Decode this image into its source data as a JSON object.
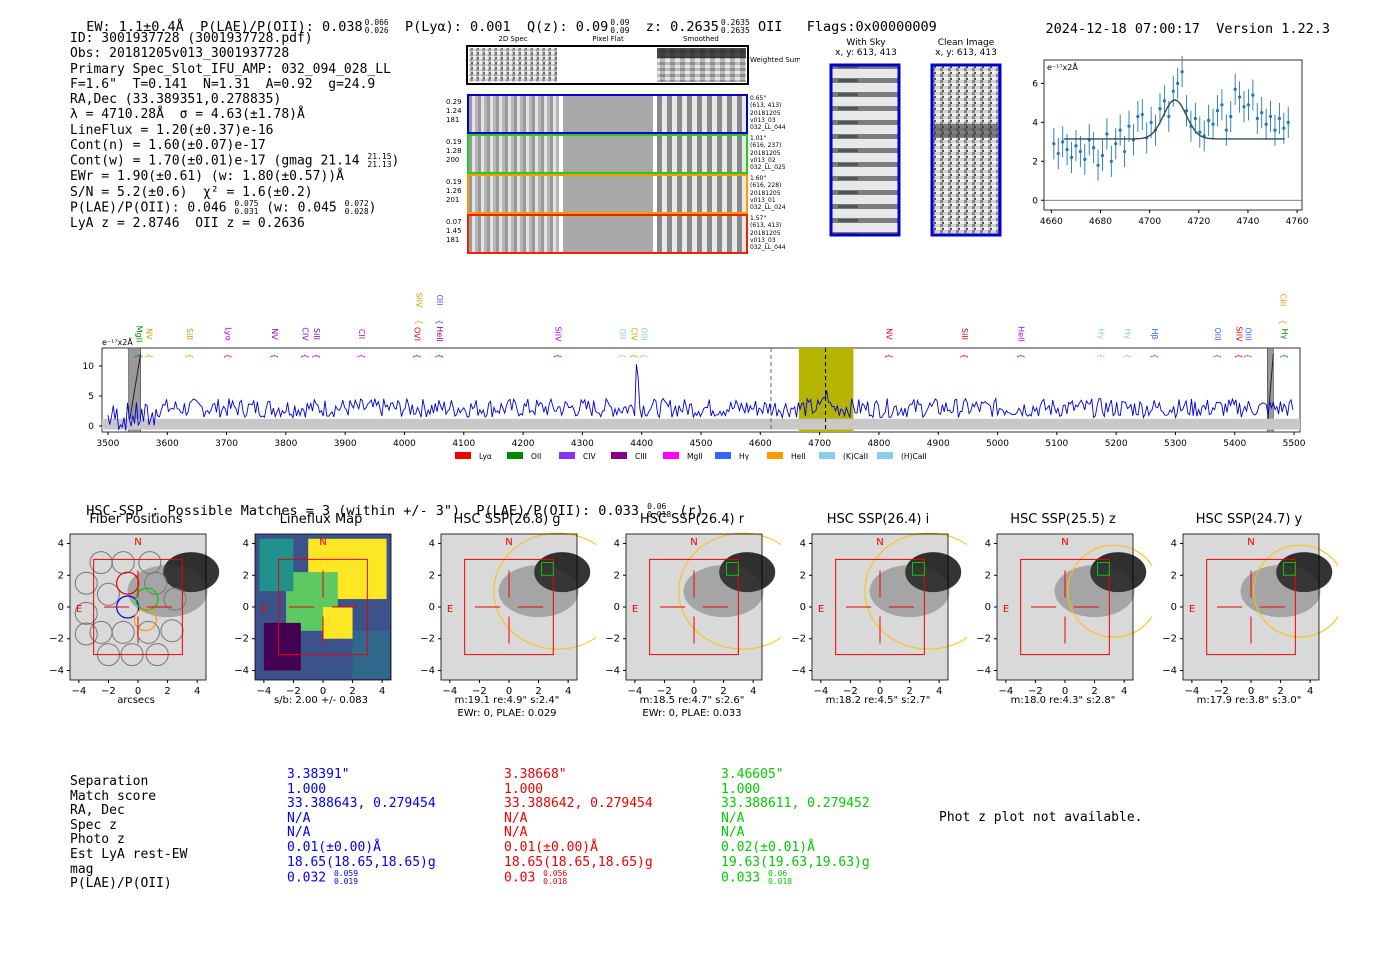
{
  "header": {
    "ew": "EW: 1.1±0.4Å",
    "plae": "P(LAE)/P(OII): 0.038",
    "plae_hi": "0.066",
    "plae_lo": "0.026",
    "plya": "P(Lyα): 0.001",
    "qz": "Q(z): 0.09",
    "qz_hi": "0.09",
    "qz_lo": "0.09",
    "z": "z: 0.2635",
    "z_hi": "0.2635",
    "z_lo": "0.2635",
    "z_line": "OII",
    "flags": "Flags:0x00000009",
    "timestamp": "2024-12-18 07:00:17",
    "version": "Version 1.22.3"
  },
  "info": {
    "id": "ID: 3001937728 (3001937728.pdf)",
    "obs": "Obs: 20181205v013_3001937728",
    "primary": "Primary Spec_Slot_IFU_AMP: 032_094_028_LL",
    "fit": "F=1.6\"  T=0.141  N=1.31  A=0.92  g=24.9",
    "radec": "RA,Dec (33.389351,0.278835)",
    "lambda": "λ = 4710.28Å  σ = 4.63(±1.78)Å",
    "lineflux": "LineFlux = 1.20(±0.37)e-16",
    "contn": "Cont(n) = 1.60(±0.07)e-17",
    "contw": "Cont(w) = 1.70(±0.01)e-17 (gmag 21.14",
    "contw_hi": "21.15",
    "contw_lo": "21.13",
    "ewr": "EWr = 1.90(±0.61) (w: 1.80(±0.57))Å",
    "sn": "S/N = 5.2(±0.6)  χ² = 1.6(±0.2)",
    "plae": "P(LAE)/P(OII): 0.046",
    "plae_hi": "0.075",
    "plae_lo": "0.031",
    "plae_w": "(w: 0.045",
    "plae_w_hi": "0.072",
    "plae_w_lo": "0.028",
    "lyaz": "LyA z = 2.8746  OII z = 0.2636"
  },
  "cutouts": {
    "col_2d": "2D Spec",
    "col_flat": "Pixel Flat",
    "col_smooth": "Smoothed",
    "weighted": "Weighted Sum",
    "rows": [
      {
        "a": "0.29",
        "b": "1.24",
        "c": "181",
        "d1": "0.65\"",
        "d2": "(613, 413)",
        "d3": "20181205",
        "d4": "v013_03",
        "d5": "032_LL_044",
        "color": "#0000cc"
      },
      {
        "a": "0.19",
        "b": "1.28",
        "c": "200",
        "d1": "1.01\"",
        "d2": "(616, 237)",
        "d3": "20181205",
        "d4": "v013_02",
        "d5": "032_LL_025",
        "color": "#22cc22"
      },
      {
        "a": "0.19",
        "b": "1.26",
        "c": "201",
        "d1": "1.60\"",
        "d2": "(616, 228)",
        "d3": "20181205",
        "d4": "v013_01",
        "d5": "032_LL_024",
        "color": "#ff9900"
      },
      {
        "a": "0.07",
        "b": "1.45",
        "c": "181",
        "d1": "1.57\"",
        "d2": "(613, 413)",
        "d3": "20181205",
        "d4": "v013_03",
        "d5": "032_LL_044",
        "color": "#ee2200"
      }
    ],
    "with_sky": "With Sky",
    "with_sky_xy": "x, y: 613, 413",
    "clean": "Clean Image",
    "clean_xy": "x, y: 613, 413"
  },
  "line_fit": {
    "ylabel": "e⁻¹⁷x2Å",
    "xticks": [
      "4660",
      "4680",
      "4700",
      "4720",
      "4740",
      "4760"
    ],
    "yticks": [
      "0",
      "2",
      "4",
      "6"
    ]
  },
  "spectrum": {
    "ylabel": "e⁻¹⁷x2Å",
    "xticks": [
      "3500",
      "3600",
      "3700",
      "3800",
      "3900",
      "4000",
      "4100",
      "4200",
      "4300",
      "4400",
      "4500",
      "4600",
      "4700",
      "4800",
      "4900",
      "5000",
      "5100",
      "5200",
      "5300",
      "5400",
      "5500"
    ],
    "yticks": [
      "0",
      "5",
      "10"
    ],
    "lines": [
      {
        "name": "MgII",
        "x": 3543,
        "row": 0,
        "color": "#008800"
      },
      {
        "name": "NV",
        "x": 3560,
        "row": 0,
        "color": "#e69900"
      },
      {
        "name": "SiII",
        "x": 3628,
        "row": 0,
        "color": "#e69900"
      },
      {
        "name": "Lyα",
        "x": 3693,
        "row": 0,
        "color": "#cc00cc"
      },
      {
        "name": "NV",
        "x": 3772,
        "row": 0,
        "color": "#8800cc"
      },
      {
        "name": "CIV",
        "x": 3823,
        "row": 0,
        "color": "#8800cc"
      },
      {
        "name": "SiII",
        "x": 3842,
        "row": 0,
        "color": "#8800cc"
      },
      {
        "name": "CII",
        "x": 3918,
        "row": 0,
        "color": "#cc00cc"
      },
      {
        "name": "OVI",
        "x": 4012,
        "row": 0,
        "color": "#ee0000"
      },
      {
        "name": "SiIV",
        "x": 4015,
        "row": 1,
        "color": "#e69900"
      },
      {
        "name": "HeII",
        "x": 4050,
        "row": 0,
        "color": "#880088"
      },
      {
        "name": "OII",
        "x": 4050,
        "row": 1,
        "color": "#3355ff"
      },
      {
        "name": "SiIV",
        "x": 4250,
        "row": 0,
        "color": "#aa00ff"
      },
      {
        "name": "OII",
        "x": 4358,
        "row": 0,
        "color": "#88ccee"
      },
      {
        "name": "CIV",
        "x": 4378,
        "row": 0,
        "color": "#e69900"
      },
      {
        "name": "OIII",
        "x": 4395,
        "row": 0,
        "color": "#88ccee"
      },
      {
        "name": "NV",
        "x": 4808,
        "row": 0,
        "color": "#ee0000"
      },
      {
        "name": "SiII",
        "x": 4935,
        "row": 0,
        "color": "#ee0000"
      },
      {
        "name": "HeII",
        "x": 5030,
        "row": 0,
        "color": "#aa00ff"
      },
      {
        "name": "Hγ",
        "x": 5165,
        "row": 0,
        "color": "#88ccee"
      },
      {
        "name": "Hγ",
        "x": 5210,
        "row": 0,
        "color": "#88ccee"
      },
      {
        "name": "Hβ",
        "x": 5255,
        "row": 0,
        "color": "#3366ff"
      },
      {
        "name": "OIII",
        "x": 5362,
        "row": 0,
        "color": "#3366ff"
      },
      {
        "name": "SiIV",
        "x": 5398,
        "row": 0,
        "color": "#ee0000"
      },
      {
        "name": "OIII",
        "x": 5413,
        "row": 0,
        "color": "#3366ff"
      },
      {
        "name": "CIII",
        "x": 5472,
        "row": 1,
        "color": "#e69900"
      },
      {
        "name": "Hγ",
        "x": 5475,
        "row": 0,
        "color": "#008800"
      }
    ],
    "legend": [
      {
        "name": "Lyα",
        "color": "#ee0000"
      },
      {
        "name": "OII",
        "color": "#008800"
      },
      {
        "name": "CIV",
        "color": "#8833ee"
      },
      {
        "name": "CIII",
        "color": "#880088"
      },
      {
        "name": "MgII",
        "color": "#ff00ff"
      },
      {
        "name": "Hγ",
        "color": "#3366ff"
      },
      {
        "name": "HeII",
        "color": "#ff9900"
      },
      {
        "name": "(K)CaII",
        "color": "#88ccee"
      },
      {
        "name": "(H)CaII",
        "color": "#88ccee"
      }
    ]
  },
  "hsc": {
    "summary": "HSC-SSP : Possible Matches = 3 (within +/- 3\")  P(LAE)/P(OII): 0.033",
    "summary_hi": "0.06",
    "summary_lo": "0.018",
    "summary_band": "(r)",
    "ticks": [
      "−4",
      "−2",
      "0",
      "2",
      "4"
    ],
    "panels": [
      {
        "title": "Fiber Positions",
        "cap1": "arcsecs",
        "cap2": ""
      },
      {
        "title": "Lineflux Map",
        "cap1": "s/b: 2.00 +/- 0.083",
        "cap2": ""
      },
      {
        "title": "HSC SSP(26.8) g",
        "cap1": "m:19.1  re:4.9\"  s:2.4\"",
        "cap2": "EWr: 0, PLAE: 0.029"
      },
      {
        "title": "HSC SSP(26.4) r",
        "cap1": "m:18.5  re:4.7\"  s:2.6\"",
        "cap2": "EWr: 0, PLAE: 0.033"
      },
      {
        "title": "HSC SSP(26.4) i",
        "cap1": "m:18.2  re:4.5\"  s:2.7\"",
        "cap2": ""
      },
      {
        "title": "HSC SSP(25.5) z",
        "cap1": "m:18.0  re:4.3\"  s:2.8\"",
        "cap2": ""
      },
      {
        "title": "HSC SSP(24.7) y",
        "cap1": "m:17.9  re:3.8\"  s:3.0\"",
        "cap2": ""
      }
    ],
    "north": "N",
    "east": "E"
  },
  "matches": {
    "labels": [
      "Separation",
      "Match score",
      "RA, Dec",
      "Spec z",
      "Photo z",
      "Est LyA rest-EW",
      "mag",
      "P(LAE)/P(OII)"
    ],
    "columns": [
      {
        "color": "#0000ee",
        "values": [
          "3.38391\"",
          "1.000",
          "33.388643, 0.279454",
          "N/A",
          "N/A",
          "0.01(±0.00)Å",
          "18.65(18.65,18.65)g",
          "0.032"
        ],
        "hi": "0.059",
        "lo": "0.019"
      },
      {
        "color": "#ee0000",
        "values": [
          "3.38668\"",
          "1.000",
          "33.388642, 0.279454",
          "N/A",
          "N/A",
          "0.01(±0.00)Å",
          "18.65(18.65,18.65)g",
          "0.03"
        ],
        "hi": "0.056",
        "lo": "0.018"
      },
      {
        "color": "#00cc00",
        "values": [
          "3.46605\"",
          "1.000",
          "33.388611, 0.279452",
          "N/A",
          "N/A",
          "0.02(±0.01)Å",
          "19.63(19.63,19.63)g",
          "0.033"
        ],
        "hi": "0.06",
        "lo": "0.018"
      }
    ],
    "photz_note": "Phot z plot not available."
  }
}
